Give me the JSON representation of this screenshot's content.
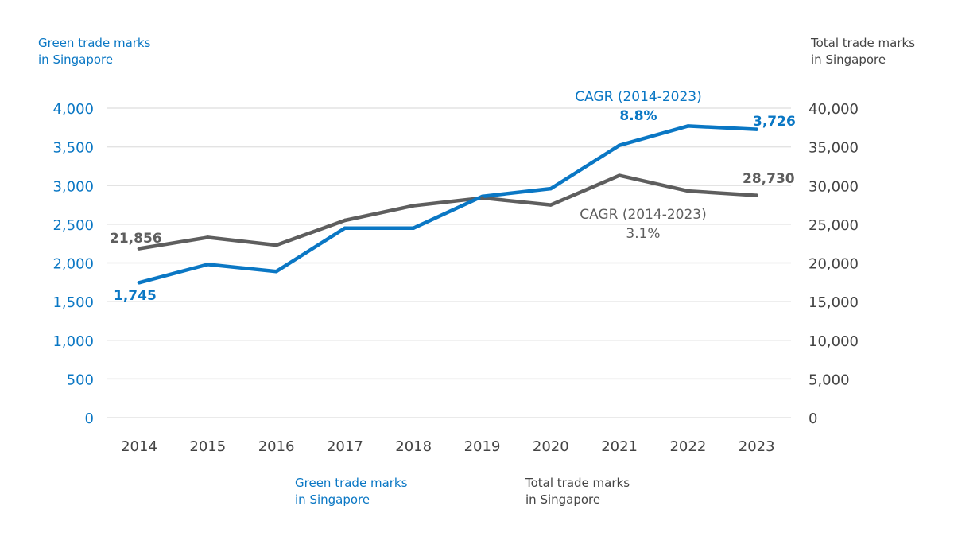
{
  "colors": {
    "green_series": "#0a77c4",
    "total_series": "#5e5e5e",
    "grid": "#e3e3e3",
    "axis_text": "#444444"
  },
  "chart_data": {
    "type": "line",
    "x": [
      "2014",
      "2015",
      "2016",
      "2017",
      "2018",
      "2019",
      "2020",
      "2021",
      "2022",
      "2023"
    ],
    "series": [
      {
        "key": "green",
        "name": "Green trade marks in Singapore",
        "axis": "left",
        "values": [
          1745,
          1980,
          1890,
          2450,
          2450,
          2860,
          2960,
          3520,
          3770,
          3726
        ]
      },
      {
        "key": "total",
        "name": "Total trade marks in Singapore",
        "axis": "right",
        "values": [
          21856,
          23300,
          22300,
          25500,
          27400,
          28400,
          27500,
          31300,
          29300,
          28730
        ]
      }
    ],
    "y_left": {
      "label_lines": [
        "Green trade marks",
        "in Singapore"
      ],
      "ylim": [
        0,
        4000
      ],
      "ticks": [
        "0",
        "500",
        "1,000",
        "1,500",
        "2,000",
        "2,500",
        "3,000",
        "3,500",
        "4,000"
      ]
    },
    "y_right": {
      "label_lines": [
        "Total trade marks",
        "in Singapore"
      ],
      "ylim": [
        0,
        40000
      ],
      "ticks": [
        "0",
        "5,000",
        "10,000",
        "15,000",
        "20,000",
        "25,000",
        "30,000",
        "35,000",
        "40,000"
      ]
    },
    "grid": true,
    "legend": {
      "position": "bottom",
      "items": [
        {
          "series": "green",
          "lines": [
            "Green trade marks",
            "in Singapore"
          ]
        },
        {
          "series": "total",
          "lines": [
            "Total trade marks",
            "in Singapore"
          ]
        }
      ]
    },
    "annotations": {
      "green_start": "1,745",
      "green_end": "3,726",
      "total_start": "21,856",
      "total_end": "28,730",
      "green_cagr_title": "CAGR (2014-2023)",
      "green_cagr_value": "8.8%",
      "total_cagr_title": "CAGR (2014-2023)",
      "total_cagr_value": "3.1%"
    }
  }
}
